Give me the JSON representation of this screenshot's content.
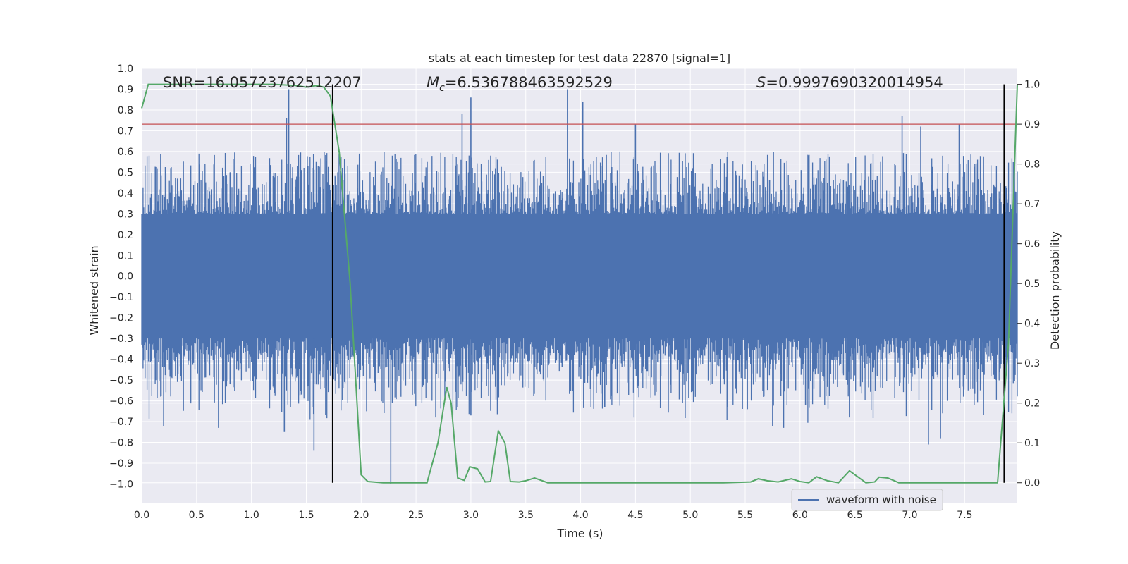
{
  "chart_data": {
    "type": "line",
    "title": "stats at each timestep for test data 22870 [signal=1]",
    "xlabel": "Time (s)",
    "ylabel": "Whitened strain",
    "ylabel_right": "Detection probability",
    "xlim": [
      0.0,
      7.98
    ],
    "ylim": [
      -1.09,
      1.0
    ],
    "ylim_right": [
      -0.05,
      1.04
    ],
    "x_ticks": [
      0.0,
      0.5,
      1.0,
      1.5,
      2.0,
      2.5,
      3.0,
      3.5,
      4.0,
      4.5,
      5.0,
      5.5,
      6.0,
      6.5,
      7.0,
      7.5
    ],
    "x_tick_labels": [
      "0.0",
      "0.5",
      "1.0",
      "1.5",
      "2.0",
      "2.5",
      "3.0",
      "3.5",
      "4.0",
      "4.5",
      "5.0",
      "5.5",
      "6.0",
      "6.5",
      "7.0",
      "7.5"
    ],
    "y_ticks": [
      1.0,
      0.9,
      0.8,
      0.7,
      0.6,
      0.5,
      0.4,
      0.3,
      0.2,
      0.1,
      0.0,
      -0.1,
      -0.2,
      -0.3,
      -0.4,
      -0.5,
      -0.6,
      -0.7,
      -0.8,
      -0.9,
      -1.0
    ],
    "y_tick_labels": [
      "1.0",
      "0.9",
      "0.8",
      "0.7",
      "0.6",
      "0.5",
      "0.4",
      "0.3",
      "0.2",
      "0.1",
      "0.0",
      "−0.1",
      "−0.2",
      "−0.3",
      "−0.4",
      "−0.5",
      "−0.6",
      "−0.7",
      "−0.8",
      "−0.9",
      "−1.0"
    ],
    "y_right_ticks": [
      1.0,
      0.9,
      0.8,
      0.7,
      0.6,
      0.5,
      0.4,
      0.3,
      0.2,
      0.1,
      0.0
    ],
    "y_right_tick_labels": [
      "1.0",
      "0.9",
      "0.8",
      "0.7",
      "0.6",
      "0.5",
      "0.4",
      "0.3",
      "0.2",
      "0.1",
      "0.0"
    ],
    "grid": true,
    "annotations": {
      "snr": "SNR=16.05723762512207",
      "mc_symbol": "M",
      "mc_sub": "c",
      "mc_value": "=6.536788463592529",
      "s_symbol": "S",
      "s_value": "=0.9997690320014954"
    },
    "threshold": {
      "value": 0.9,
      "axis": "right",
      "color": "#c44e52"
    },
    "vertical_lines": [
      1.74,
      7.86
    ],
    "legend": {
      "entries": [
        "waveform with noise"
      ],
      "location": "lower right"
    },
    "series": [
      {
        "name": "waveform with noise",
        "axis": "left",
        "color": "#4c72b0",
        "envelope": {
          "typical_amplitude": 0.4,
          "min_amplitude": 0.3
        },
        "peaks": [
          {
            "x": 0.2,
            "y": -0.72
          },
          {
            "x": 0.7,
            "y": -0.73
          },
          {
            "x": 1.3,
            "y": -0.75
          },
          {
            "x": 1.34,
            "y": 0.9
          },
          {
            "x": 1.32,
            "y": 0.76
          },
          {
            "x": 1.57,
            "y": -0.84
          },
          {
            "x": 2.05,
            "y": -0.65
          },
          {
            "x": 2.27,
            "y": -1.0
          },
          {
            "x": 2.68,
            "y": -0.68
          },
          {
            "x": 2.92,
            "y": 0.78
          },
          {
            "x": 3.0,
            "y": 0.86
          },
          {
            "x": 3.0,
            "y": -0.67
          },
          {
            "x": 3.88,
            "y": 0.9
          },
          {
            "x": 4.02,
            "y": 0.84
          },
          {
            "x": 4.22,
            "y": -0.63
          },
          {
            "x": 4.5,
            "y": 0.73
          },
          {
            "x": 5.52,
            "y": -0.64
          },
          {
            "x": 5.75,
            "y": -0.72
          },
          {
            "x": 5.85,
            "y": -0.73
          },
          {
            "x": 6.05,
            "y": -0.62
          },
          {
            "x": 6.45,
            "y": -0.68
          },
          {
            "x": 6.93,
            "y": 0.77
          },
          {
            "x": 7.17,
            "y": -0.81
          },
          {
            "x": 7.28,
            "y": -0.78
          },
          {
            "x": 7.45,
            "y": 0.73
          },
          {
            "x": 7.1,
            "y": 0.72
          }
        ]
      },
      {
        "name": "detection probability",
        "axis": "right",
        "color": "#55a868",
        "x": [
          0.0,
          0.06,
          0.2,
          0.4,
          0.6,
          0.8,
          1.0,
          1.2,
          1.4,
          1.5,
          1.6,
          1.66,
          1.72,
          1.8,
          1.9,
          2.0,
          2.06,
          2.2,
          2.4,
          2.6,
          2.7,
          2.78,
          2.82,
          2.88,
          2.94,
          2.99,
          3.06,
          3.13,
          3.18,
          3.25,
          3.31,
          3.36,
          3.44,
          3.5,
          3.58,
          3.7,
          4.0,
          4.5,
          5.0,
          5.3,
          5.55,
          5.62,
          5.7,
          5.8,
          5.92,
          6.0,
          6.08,
          6.15,
          6.25,
          6.35,
          6.45,
          6.5,
          6.6,
          6.68,
          6.72,
          6.8,
          6.9,
          7.0,
          7.25,
          7.5,
          7.8,
          7.9,
          7.98
        ],
        "y": [
          0.94,
          1.0,
          1.0,
          1.0,
          1.0,
          1.0,
          1.0,
          1.0,
          0.997,
          0.993,
          0.997,
          0.993,
          0.97,
          0.83,
          0.5,
          0.02,
          0.003,
          0.0,
          0.0,
          0.0,
          0.1,
          0.24,
          0.2,
          0.012,
          0.006,
          0.04,
          0.035,
          0.002,
          0.003,
          0.13,
          0.1,
          0.003,
          0.002,
          0.005,
          0.012,
          0.0,
          0.0,
          0.0,
          0.0,
          0.0,
          0.002,
          0.01,
          0.005,
          0.002,
          0.01,
          0.003,
          0.0,
          0.015,
          0.005,
          0.0,
          0.03,
          0.02,
          0.0,
          0.002,
          0.014,
          0.012,
          0.0,
          0.0,
          0.0,
          0.0,
          0.0,
          0.35,
          1.0
        ]
      }
    ]
  }
}
